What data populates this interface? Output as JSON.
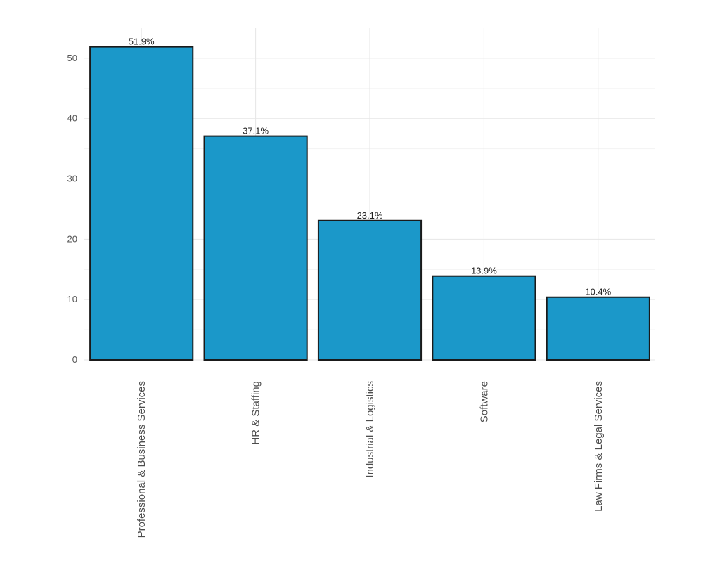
{
  "chart_data": {
    "type": "bar",
    "title": "",
    "xlabel": "",
    "ylabel": "",
    "categories": [
      "Professional & Business Services",
      "HR & Staffing",
      "Industrial & Logistics",
      "Software",
      "Law Firms & Legal Services"
    ],
    "values": [
      51.9,
      37.1,
      23.1,
      13.9,
      10.4
    ],
    "data_labels": [
      "51.9%",
      "37.1%",
      "23.1%",
      "13.9%",
      "10.4%"
    ],
    "ylim": [
      0,
      55
    ],
    "yticks": [
      0,
      10,
      20,
      30,
      40,
      50
    ],
    "ytick_labels": [
      "0",
      "10",
      "20",
      "30",
      "40",
      "50"
    ],
    "bar_color": "#1B98C9",
    "bar_outline_color": "#1a1a1a",
    "grid": true,
    "legend": "none"
  }
}
